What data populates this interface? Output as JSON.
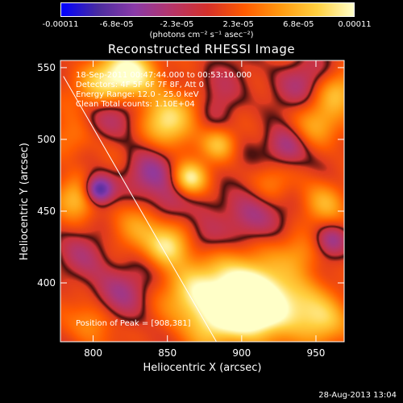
{
  "colorbar": {
    "colors": [
      "#0000ff",
      "#4a2ca0",
      "#8a3aa8",
      "#b5356a",
      "#d4302a",
      "#ff5a00",
      "#ff9a10",
      "#ffd040",
      "#ffffc8"
    ],
    "ticks": [
      {
        "label": "-0.00011",
        "value": -0.00011
      },
      {
        "label": "-6.8e-05",
        "value": -6.8e-05
      },
      {
        "label": "-2.3e-05",
        "value": -2.3e-05
      },
      {
        "label": "2.3e-05",
        "value": 2.3e-05
      },
      {
        "label": "6.8e-05",
        "value": 6.8e-05
      },
      {
        "label": "0.00011",
        "value": 0.00011
      }
    ],
    "label": "(photons cm⁻² s⁻¹ asec⁻²)"
  },
  "chart_data": {
    "type": "heatmap",
    "title": "Reconstructed RHESSI Image",
    "xlabel": "Heliocentric X (arcsec)",
    "ylabel": "Heliocentric Y (arcsec)",
    "xlim": [
      778,
      969
    ],
    "ylim": [
      359,
      555
    ],
    "xticks": [
      800,
      850,
      900,
      950
    ],
    "yticks": [
      400,
      450,
      500,
      550
    ],
    "annotations": [
      "18-Sep-2011 00:47:44.000 to 00:53:10.000",
      "Detectors: 4F 5F 6F 7F 8F, Att 0",
      "Energy Range: 12.0 - 25.0 keV",
      "Clean    Total counts: 1.10E+04"
    ],
    "peak_label": "Position of Peak = [908,381]",
    "peak": [
      908,
      381
    ],
    "limb_line": [
      [
        780,
        544
      ],
      [
        883,
        359
      ]
    ],
    "sources": [
      [
        908,
        381,
        1.0,
        14
      ],
      [
        900,
        398,
        0.85,
        18
      ],
      [
        868,
        392,
        0.7,
        14
      ],
      [
        850,
        426,
        0.8,
        10
      ],
      [
        935,
        385,
        0.55,
        14
      ],
      [
        880,
        370,
        0.5,
        12
      ],
      [
        826,
        546,
        0.9,
        12
      ],
      [
        806,
        537,
        0.7,
        12
      ],
      [
        850,
        512,
        0.75,
        12
      ],
      [
        870,
        528,
        0.45,
        10
      ],
      [
        865,
        473,
        0.8,
        8
      ],
      [
        885,
        497,
        0.55,
        8
      ],
      [
        965,
        534,
        0.5,
        10
      ],
      [
        950,
        510,
        0.45,
        12
      ],
      [
        790,
        460,
        0.55,
        10
      ],
      [
        955,
        455,
        0.4,
        10
      ],
      [
        920,
        468,
        0.35,
        10
      ],
      [
        830,
        440,
        0.4,
        12
      ],
      [
        800,
        372,
        0.35,
        10
      ],
      [
        955,
        372,
        0.5,
        12
      ],
      [
        940,
        420,
        0.3,
        10
      ],
      [
        785,
        500,
        0.3,
        10
      ],
      [
        803,
        465,
        -1.0,
        7
      ],
      [
        812,
        520,
        -0.4,
        14
      ],
      [
        838,
        475,
        -0.5,
        12
      ],
      [
        905,
        448,
        -0.5,
        14
      ],
      [
        880,
        530,
        -0.45,
        14
      ],
      [
        940,
        540,
        -0.4,
        12
      ],
      [
        930,
        495,
        -0.55,
        10
      ],
      [
        820,
        395,
        -0.4,
        14
      ],
      [
        850,
        455,
        -0.35,
        10
      ],
      [
        960,
        430,
        -0.45,
        8
      ],
      [
        875,
        430,
        -0.3,
        10
      ],
      [
        795,
        420,
        -0.3,
        12
      ]
    ]
  },
  "timestamp": "28-Aug-2013 13:04"
}
